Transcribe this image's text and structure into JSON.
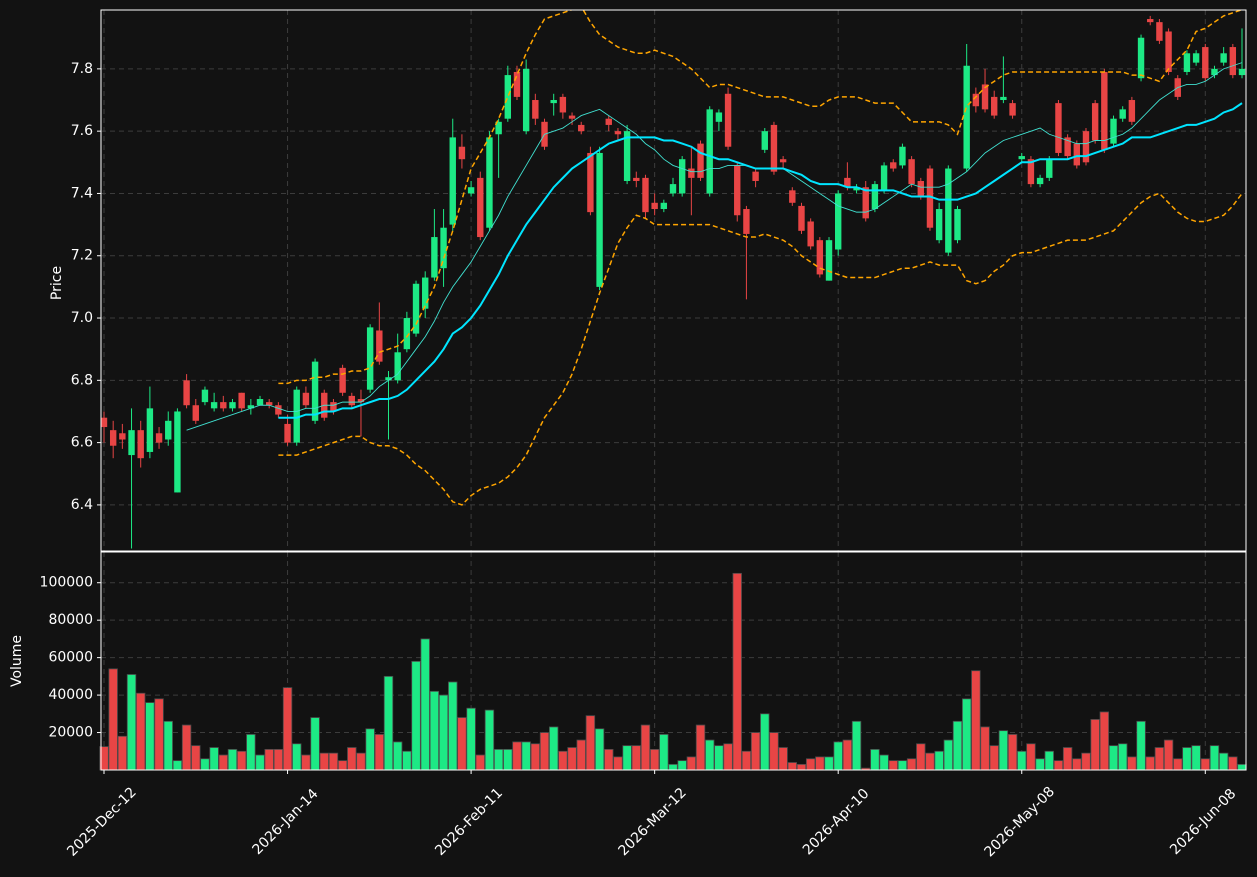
{
  "chart_data": {
    "type": "candlestick",
    "ylabel": "Price",
    "volume_ylabel": "Volume",
    "categories": [
      "2025-Dec-12",
      null,
      null,
      null,
      null,
      null,
      null,
      null,
      null,
      null,
      null,
      null,
      null,
      null,
      null,
      null,
      null,
      null,
      null,
      null,
      "2026-Jan-14",
      null,
      null,
      null,
      null,
      null,
      null,
      null,
      null,
      null,
      null,
      null,
      null,
      null,
      null,
      null,
      null,
      null,
      null,
      null,
      "2026-Feb-11",
      null,
      null,
      null,
      null,
      null,
      null,
      null,
      null,
      null,
      null,
      null,
      null,
      null,
      null,
      null,
      null,
      null,
      null,
      null,
      "2026-Mar-12",
      null,
      null,
      null,
      null,
      null,
      null,
      null,
      null,
      null,
      null,
      null,
      null,
      null,
      null,
      null,
      null,
      null,
      null,
      null,
      "2026-Apr-10",
      null,
      null,
      null,
      null,
      null,
      null,
      null,
      null,
      null,
      null,
      null,
      null,
      null,
      null,
      null,
      null,
      null,
      null,
      null,
      "2026-May-08",
      null,
      null,
      null,
      null,
      null,
      null,
      null,
      null,
      null,
      null,
      null,
      null,
      null,
      null,
      null,
      null,
      null,
      null,
      null,
      "2026-Jun-08",
      null,
      null,
      null,
      null
    ],
    "open": [
      6.68,
      6.64,
      6.63,
      6.56,
      6.64,
      6.57,
      6.63,
      6.61,
      6.44,
      6.8,
      6.72,
      6.73,
      6.71,
      6.73,
      6.71,
      6.76,
      6.71,
      6.72,
      6.73,
      6.72,
      6.66,
      6.6,
      6.76,
      6.67,
      6.76,
      6.73,
      6.84,
      6.75,
      6.74,
      6.77,
      6.96,
      6.8,
      6.8,
      6.9,
      6.95,
      7.03,
      7.13,
      7.16,
      7.3,
      7.55,
      7.4,
      7.45,
      7.29,
      7.59,
      7.64,
      7.79,
      7.6,
      7.7,
      7.63,
      7.69,
      7.71,
      7.65,
      7.62,
      7.53,
      7.1,
      7.64,
      7.6,
      7.44,
      7.45,
      7.45,
      7.37,
      7.35,
      7.4,
      7.4,
      7.48,
      7.56,
      7.4,
      7.63,
      7.72,
      7.49,
      7.35,
      7.47,
      7.54,
      7.62,
      7.51,
      7.41,
      7.36,
      7.31,
      7.25,
      7.12,
      7.22,
      7.45,
      7.41,
      7.42,
      7.35,
      7.41,
      7.5,
      7.49,
      7.51,
      7.44,
      7.48,
      7.25,
      7.21,
      7.25,
      7.48,
      7.72,
      7.75,
      7.71,
      7.7,
      7.69,
      7.51,
      7.51,
      7.43,
      7.45,
      7.69,
      7.58,
      7.56,
      7.6,
      7.69,
      7.79,
      7.56,
      7.64,
      7.7,
      7.77,
      7.96,
      7.95,
      7.92,
      7.77,
      7.79,
      7.82,
      7.87,
      7.78,
      7.82,
      7.87,
      7.78
    ],
    "high": [
      6.7,
      6.67,
      6.66,
      6.71,
      6.67,
      6.78,
      6.65,
      6.7,
      6.71,
      6.82,
      6.74,
      6.78,
      6.76,
      6.75,
      6.74,
      6.76,
      6.74,
      6.75,
      6.74,
      6.73,
      6.69,
      6.78,
      6.78,
      6.87,
      6.77,
      6.74,
      6.85,
      6.76,
      6.77,
      6.98,
      7.05,
      6.83,
      6.95,
      7.02,
      7.12,
      7.15,
      7.35,
      7.35,
      7.64,
      7.59,
      7.44,
      7.47,
      7.6,
      7.64,
      7.81,
      7.81,
      7.83,
      7.72,
      7.64,
      7.72,
      7.72,
      7.66,
      7.63,
      7.55,
      7.55,
      7.65,
      7.61,
      7.62,
      7.47,
      7.46,
      7.4,
      7.38,
      7.45,
      7.52,
      7.55,
      7.57,
      7.68,
      7.67,
      7.74,
      7.5,
      7.36,
      7.48,
      7.61,
      7.63,
      7.52,
      7.42,
      7.37,
      7.32,
      7.26,
      7.26,
      7.41,
      7.5,
      7.43,
      7.44,
      7.44,
      7.5,
      7.51,
      7.56,
      7.52,
      7.45,
      7.49,
      7.37,
      7.49,
      7.36,
      7.88,
      7.74,
      7.8,
      7.73,
      7.84,
      7.7,
      7.53,
      7.52,
      7.46,
      7.52,
      7.7,
      7.59,
      7.57,
      7.61,
      7.7,
      7.8,
      7.65,
      7.68,
      7.71,
      7.91,
      7.97,
      7.96,
      7.93,
      7.78,
      7.86,
      7.86,
      7.88,
      7.81,
      7.87,
      7.88,
      7.93
    ],
    "low": [
      6.6,
      6.55,
      6.58,
      6.26,
      6.52,
      6.55,
      6.58,
      6.59,
      6.44,
      6.71,
      6.66,
      6.72,
      6.7,
      6.7,
      6.7,
      6.7,
      6.69,
      6.72,
      6.71,
      6.68,
      6.59,
      6.59,
      6.71,
      6.66,
      6.67,
      6.69,
      6.75,
      6.71,
      6.62,
      6.76,
      6.85,
      6.61,
      6.79,
      6.89,
      6.94,
      7.0,
      7.12,
      7.1,
      7.28,
      7.48,
      7.39,
      7.25,
      7.28,
      7.45,
      7.63,
      7.7,
      7.59,
      7.62,
      7.54,
      7.65,
      7.64,
      7.62,
      7.59,
      7.33,
      7.09,
      7.6,
      7.57,
      7.43,
      7.42,
      7.32,
      7.33,
      7.34,
      7.39,
      7.39,
      7.33,
      7.44,
      7.39,
      7.6,
      7.54,
      7.31,
      7.06,
      7.42,
      7.53,
      7.46,
      7.48,
      7.36,
      7.27,
      7.22,
      7.13,
      7.12,
      7.2,
      7.41,
      7.4,
      7.31,
      7.34,
      7.4,
      7.47,
      7.48,
      7.42,
      7.38,
      7.28,
      7.24,
      7.2,
      7.24,
      7.47,
      7.66,
      7.66,
      7.64,
      7.69,
      7.64,
      7.5,
      7.42,
      7.42,
      7.44,
      7.52,
      7.51,
      7.48,
      7.49,
      7.56,
      7.53,
      7.55,
      7.63,
      7.62,
      7.76,
      7.94,
      7.88,
      7.78,
      7.7,
      7.78,
      7.81,
      7.76,
      7.77,
      7.81,
      7.77,
      7.77
    ],
    "close": [
      6.65,
      6.59,
      6.61,
      6.64,
      6.55,
      6.71,
      6.6,
      6.67,
      6.7,
      6.72,
      6.67,
      6.77,
      6.73,
      6.71,
      6.73,
      6.71,
      6.72,
      6.74,
      6.72,
      6.69,
      6.6,
      6.77,
      6.72,
      6.86,
      6.68,
      6.7,
      6.76,
      6.72,
      6.73,
      6.97,
      6.86,
      6.81,
      6.89,
      7.0,
      7.11,
      7.13,
      7.26,
      7.29,
      7.58,
      7.51,
      7.42,
      7.26,
      7.58,
      7.63,
      7.78,
      7.71,
      7.8,
      7.64,
      7.55,
      7.7,
      7.66,
      7.64,
      7.6,
      7.34,
      7.53,
      7.62,
      7.59,
      7.6,
      7.44,
      7.34,
      7.35,
      7.37,
      7.43,
      7.51,
      7.45,
      7.45,
      7.67,
      7.66,
      7.55,
      7.33,
      7.27,
      7.44,
      7.6,
      7.47,
      7.5,
      7.37,
      7.28,
      7.23,
      7.14,
      7.25,
      7.4,
      7.42,
      7.42,
      7.32,
      7.43,
      7.49,
      7.48,
      7.55,
      7.43,
      7.39,
      7.29,
      7.35,
      7.48,
      7.35,
      7.81,
      7.68,
      7.67,
      7.65,
      7.71,
      7.65,
      7.52,
      7.43,
      7.45,
      7.51,
      7.53,
      7.52,
      7.49,
      7.5,
      7.57,
      7.54,
      7.64,
      7.67,
      7.63,
      7.9,
      7.95,
      7.89,
      7.79,
      7.71,
      7.85,
      7.85,
      7.77,
      7.8,
      7.85,
      7.78,
      7.8
    ],
    "volume": [
      12500,
      54000,
      18000,
      51000,
      41000,
      36000,
      38000,
      26000,
      5000,
      24000,
      13000,
      6000,
      12000,
      8000,
      11000,
      10000,
      19000,
      8000,
      11000,
      11000,
      44000,
      14000,
      8000,
      28000,
      9000,
      9000,
      5000,
      12000,
      9000,
      22000,
      19000,
      50000,
      15000,
      10000,
      58000,
      70000,
      42000,
      40000,
      47000,
      28000,
      33000,
      8000,
      32000,
      11000,
      11000,
      15000,
      15000,
      14000,
      20000,
      23000,
      10000,
      12000,
      16000,
      29000,
      22000,
      11000,
      7000,
      13000,
      13000,
      24000,
      11000,
      19000,
      3000,
      5000,
      7000,
      24000,
      16000,
      13000,
      14000,
      105000,
      10000,
      20000,
      30000,
      20000,
      12000,
      4000,
      3000,
      6000,
      7000,
      7000,
      15000,
      16000,
      26000,
      1000,
      11000,
      8000,
      5000,
      5000,
      6000,
      14000,
      9000,
      10000,
      16000,
      26000,
      38000,
      53000,
      23000,
      13000,
      21000,
      19000,
      10000,
      14000,
      6000,
      10000,
      5000,
      12000,
      6000,
      9000,
      27000,
      31000,
      13000,
      14000,
      7000,
      26000,
      7000,
      12000,
      16000,
      6000,
      12000,
      13000,
      6000,
      13000,
      9000,
      7000,
      3000
    ],
    "up_color": "#1de985",
    "down_color": "#e84545",
    "ylim": [
      6.252,
      7.989
    ],
    "yticks": [
      6.4,
      6.6,
      6.8,
      {
        "value": 7,
        "label": "7.0"
      },
      7.2,
      7.4,
      7.6,
      7.8
    ],
    "volume_ylim": [
      0,
      116400
    ],
    "volume_yticks": [
      20000,
      40000,
      60000,
      80000,
      100000
    ],
    "grid": true,
    "lines": [
      {
        "color": "#ffa500",
        "style": "dashed",
        "values": [
          null,
          null,
          null,
          null,
          null,
          null,
          null,
          null,
          null,
          null,
          null,
          null,
          null,
          null,
          null,
          null,
          null,
          null,
          null,
          6.79,
          6.79,
          6.8,
          6.8,
          6.81,
          6.81,
          6.82,
          6.82,
          6.83,
          6.83,
          6.84,
          6.89,
          6.9,
          6.91,
          6.94,
          6.98,
          7.04,
          7.1,
          7.19,
          7.28,
          7.38,
          7.48,
          7.53,
          7.58,
          7.64,
          7.71,
          7.78,
          7.85,
          7.91,
          7.96,
          7.97,
          7.98,
          7.99,
          8.0,
          7.95,
          7.91,
          7.89,
          7.87,
          7.86,
          7.85,
          7.85,
          7.86,
          7.85,
          7.84,
          7.82,
          7.8,
          7.77,
          7.74,
          7.75,
          7.75,
          7.74,
          7.73,
          7.72,
          7.71,
          7.71,
          7.71,
          7.7,
          7.69,
          7.68,
          7.68,
          7.7,
          7.71,
          7.71,
          7.71,
          7.7,
          7.69,
          7.69,
          7.69,
          7.66,
          7.63,
          7.63,
          7.63,
          7.63,
          7.62,
          7.59,
          7.68,
          7.71,
          7.74,
          7.76,
          7.78,
          7.79,
          7.79,
          7.79,
          7.79,
          7.79,
          7.79,
          7.79,
          7.79,
          7.79,
          7.79,
          7.79,
          7.79,
          7.79,
          7.78,
          7.78,
          7.77,
          7.76,
          7.8,
          7.83,
          7.86,
          7.92,
          7.93,
          7.95,
          7.97,
          7.98,
          7.99
        ]
      },
      {
        "color": "#ffa500",
        "style": "dashed",
        "values": [
          null,
          null,
          null,
          null,
          null,
          null,
          null,
          null,
          null,
          null,
          null,
          null,
          null,
          null,
          null,
          null,
          null,
          null,
          null,
          6.56,
          6.56,
          6.56,
          6.57,
          6.58,
          6.59,
          6.6,
          6.61,
          6.62,
          6.62,
          6.6,
          6.59,
          6.59,
          6.58,
          6.56,
          6.53,
          6.51,
          6.48,
          6.45,
          6.41,
          6.4,
          6.43,
          6.45,
          6.46,
          6.47,
          6.49,
          6.52,
          6.56,
          6.62,
          6.68,
          6.72,
          6.76,
          6.82,
          6.9,
          6.99,
          7.08,
          7.16,
          7.24,
          7.29,
          7.33,
          7.32,
          7.3,
          7.3,
          7.3,
          7.3,
          7.3,
          7.3,
          7.3,
          7.29,
          7.28,
          7.27,
          7.26,
          7.26,
          7.27,
          7.26,
          7.25,
          7.23,
          7.2,
          7.18,
          7.16,
          7.15,
          7.14,
          7.13,
          7.13,
          7.13,
          7.13,
          7.14,
          7.15,
          7.16,
          7.16,
          7.17,
          7.18,
          7.17,
          7.17,
          7.17,
          7.12,
          7.11,
          7.12,
          7.15,
          7.17,
          7.2,
          7.21,
          7.21,
          7.22,
          7.23,
          7.24,
          7.25,
          7.25,
          7.25,
          7.26,
          7.27,
          7.28,
          7.31,
          7.34,
          7.37,
          7.39,
          7.4,
          7.37,
          7.34,
          7.32,
          7.31,
          7.31,
          7.32,
          7.33,
          7.36,
          7.4
        ]
      },
      {
        "color": "#40e0d0",
        "style": "thin",
        "values": [
          null,
          null,
          null,
          null,
          null,
          null,
          null,
          null,
          null,
          6.64,
          6.65,
          6.66,
          6.67,
          6.68,
          6.69,
          6.7,
          6.71,
          6.72,
          6.72,
          6.71,
          6.7,
          6.7,
          6.71,
          6.71,
          6.72,
          6.72,
          6.73,
          6.73,
          6.73,
          6.75,
          6.78,
          6.8,
          6.82,
          6.86,
          6.9,
          6.94,
          6.99,
          7.05,
          7.1,
          7.14,
          7.18,
          7.23,
          7.28,
          7.33,
          7.39,
          7.44,
          7.49,
          7.54,
          7.59,
          7.6,
          7.61,
          7.63,
          7.65,
          7.66,
          7.67,
          7.65,
          7.63,
          7.61,
          7.59,
          7.56,
          7.54,
          7.51,
          7.49,
          7.48,
          7.47,
          7.47,
          7.48,
          7.48,
          7.49,
          7.49,
          7.49,
          7.48,
          7.48,
          7.48,
          7.48,
          7.46,
          7.44,
          7.42,
          7.4,
          7.38,
          7.36,
          7.35,
          7.34,
          7.34,
          7.35,
          7.37,
          7.39,
          7.41,
          7.43,
          7.42,
          7.42,
          7.42,
          7.43,
          7.45,
          7.47,
          7.5,
          7.53,
          7.55,
          7.57,
          7.58,
          7.59,
          7.6,
          7.61,
          7.59,
          7.58,
          7.57,
          7.56,
          7.56,
          7.57,
          7.57,
          7.58,
          7.59,
          7.61,
          7.64,
          7.67,
          7.7,
          7.72,
          7.74,
          7.75,
          7.75,
          7.76,
          7.78,
          7.8,
          7.81,
          7.82
        ]
      },
      {
        "color": "#00e5ff",
        "style": "thick",
        "values": [
          null,
          null,
          null,
          null,
          null,
          null,
          null,
          null,
          null,
          null,
          null,
          null,
          null,
          null,
          null,
          null,
          null,
          null,
          null,
          6.68,
          6.68,
          6.68,
          6.69,
          6.69,
          6.7,
          6.7,
          6.71,
          6.71,
          6.72,
          6.73,
          6.74,
          6.74,
          6.75,
          6.77,
          6.8,
          6.83,
          6.86,
          6.9,
          6.95,
          6.97,
          7.0,
          7.04,
          7.09,
          7.14,
          7.2,
          7.25,
          7.3,
          7.34,
          7.38,
          7.42,
          7.45,
          7.48,
          7.5,
          7.52,
          7.54,
          7.56,
          7.57,
          7.58,
          7.58,
          7.58,
          7.58,
          7.57,
          7.57,
          7.56,
          7.55,
          7.53,
          7.52,
          7.51,
          7.51,
          7.5,
          7.49,
          7.48,
          7.48,
          7.48,
          7.48,
          7.47,
          7.46,
          7.44,
          7.43,
          7.43,
          7.43,
          7.42,
          7.42,
          7.41,
          7.41,
          7.41,
          7.41,
          7.4,
          7.39,
          7.39,
          7.39,
          7.38,
          7.38,
          7.38,
          7.39,
          7.4,
          7.42,
          7.44,
          7.46,
          7.48,
          7.5,
          7.5,
          7.51,
          7.51,
          7.51,
          7.51,
          7.52,
          7.52,
          7.53,
          7.54,
          7.55,
          7.56,
          7.58,
          7.58,
          7.58,
          7.59,
          7.6,
          7.61,
          7.62,
          7.62,
          7.63,
          7.64,
          7.66,
          7.67,
          7.69
        ]
      }
    ]
  }
}
